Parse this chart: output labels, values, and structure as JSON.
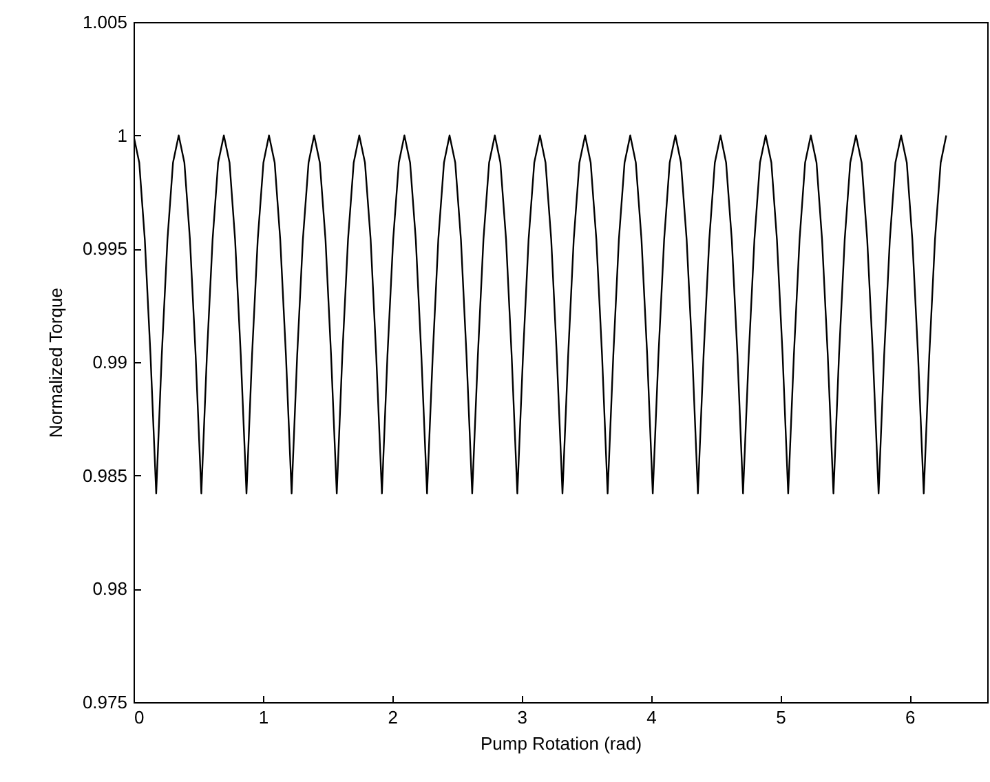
{
  "chart_data": {
    "type": "line",
    "xlabel": "Pump Rotation (rad)",
    "ylabel": "Normalized Torque",
    "xlim": [
      0,
      6.6
    ],
    "xticks": [
      0,
      1,
      2,
      3,
      4,
      5,
      6
    ],
    "ylim": [
      0.975,
      1.005
    ],
    "yticks": [
      0.975,
      0.98,
      0.985,
      0.99,
      0.995,
      1,
      1.005
    ],
    "grid": false,
    "marker": "none",
    "line_style": "solid",
    "x": [
      0,
      0.044,
      0.087,
      0.131,
      0.175,
      0.218,
      0.262,
      0.305,
      0.349,
      0.393,
      0.436,
      0.48,
      0.524,
      0.567,
      0.611,
      0.654,
      0.698,
      0.742,
      0.785,
      0.829,
      0.873,
      0.916,
      0.96,
      1.004,
      1.047,
      1.091,
      1.134,
      1.178,
      1.222,
      1.265,
      1.309,
      1.353,
      1.396,
      1.44,
      1.484,
      1.527,
      1.571,
      1.614,
      1.658,
      1.702,
      1.745,
      1.789,
      1.833,
      1.876,
      1.92,
      1.963,
      2.007,
      2.051,
      2.094,
      2.138,
      2.182,
      2.225,
      2.269,
      2.313,
      2.356,
      2.4,
      2.443,
      2.487,
      2.531,
      2.574,
      2.618,
      2.662,
      2.705,
      2.749,
      2.793,
      2.836,
      2.88,
      2.923,
      2.967,
      3.011,
      3.054,
      3.098,
      3.142,
      3.185,
      3.229,
      3.272,
      3.316,
      3.36,
      3.403,
      3.447,
      3.491,
      3.534,
      3.578,
      3.622,
      3.665,
      3.709,
      3.752,
      3.796,
      3.84,
      3.883,
      3.927,
      3.971,
      4.014,
      4.058,
      4.102,
      4.145,
      4.189,
      4.232,
      4.276,
      4.32,
      4.363,
      4.407,
      4.451,
      4.494,
      4.538,
      4.581,
      4.625,
      4.669,
      4.712,
      4.756,
      4.8,
      4.843,
      4.887,
      4.931,
      4.974,
      5.018,
      5.061,
      5.105,
      5.149,
      5.192,
      5.236,
      5.28,
      5.323,
      5.367,
      5.411,
      5.454,
      5.498,
      5.541,
      5.585,
      5.629,
      5.672,
      5.716,
      5.76,
      5.803,
      5.847,
      5.89,
      5.934,
      5.978,
      6.021,
      6.065,
      6.109,
      6.152,
      6.196,
      6.24,
      6.283
    ],
    "series": [
      {
        "color": "#000000",
        "values": [
          1,
          0.9988,
          0.9954,
          0.9903,
          0.9842,
          0.9903,
          0.9954,
          0.9988,
          1,
          0.9988,
          0.9954,
          0.9903,
          0.9842,
          0.9903,
          0.9954,
          0.9988,
          1,
          0.9988,
          0.9954,
          0.9903,
          0.9842,
          0.9903,
          0.9954,
          0.9988,
          1,
          0.9988,
          0.9954,
          0.9903,
          0.9842,
          0.9903,
          0.9954,
          0.9988,
          1,
          0.9988,
          0.9954,
          0.9903,
          0.9842,
          0.9903,
          0.9954,
          0.9988,
          1,
          0.9988,
          0.9954,
          0.9903,
          0.9842,
          0.9903,
          0.9954,
          0.9988,
          1,
          0.9988,
          0.9954,
          0.9903,
          0.9842,
          0.9903,
          0.9954,
          0.9988,
          1,
          0.9988,
          0.9954,
          0.9903,
          0.9842,
          0.9903,
          0.9954,
          0.9988,
          1,
          0.9988,
          0.9954,
          0.9903,
          0.9842,
          0.9903,
          0.9954,
          0.9988,
          1,
          0.9988,
          0.9954,
          0.9903,
          0.9842,
          0.9903,
          0.9954,
          0.9988,
          1,
          0.9988,
          0.9954,
          0.9903,
          0.9842,
          0.9903,
          0.9954,
          0.9988,
          1,
          0.9988,
          0.9954,
          0.9903,
          0.9842,
          0.9903,
          0.9954,
          0.9988,
          1,
          0.9988,
          0.9954,
          0.9903,
          0.9842,
          0.9903,
          0.9954,
          0.9988,
          1,
          0.9988,
          0.9954,
          0.9903,
          0.9842,
          0.9903,
          0.9954,
          0.9988,
          1,
          0.9988,
          0.9954,
          0.9903,
          0.9842,
          0.9903,
          0.9954,
          0.9988,
          1,
          0.9988,
          0.9954,
          0.9903,
          0.9842,
          0.9903,
          0.9954,
          0.9988,
          1,
          0.9988,
          0.9954,
          0.9903,
          0.9842,
          0.9903,
          0.9954,
          0.9988,
          1,
          0.9988,
          0.9954,
          0.9903,
          0.9842,
          0.9903,
          0.9954,
          0.9988,
          1
        ]
      }
    ]
  }
}
